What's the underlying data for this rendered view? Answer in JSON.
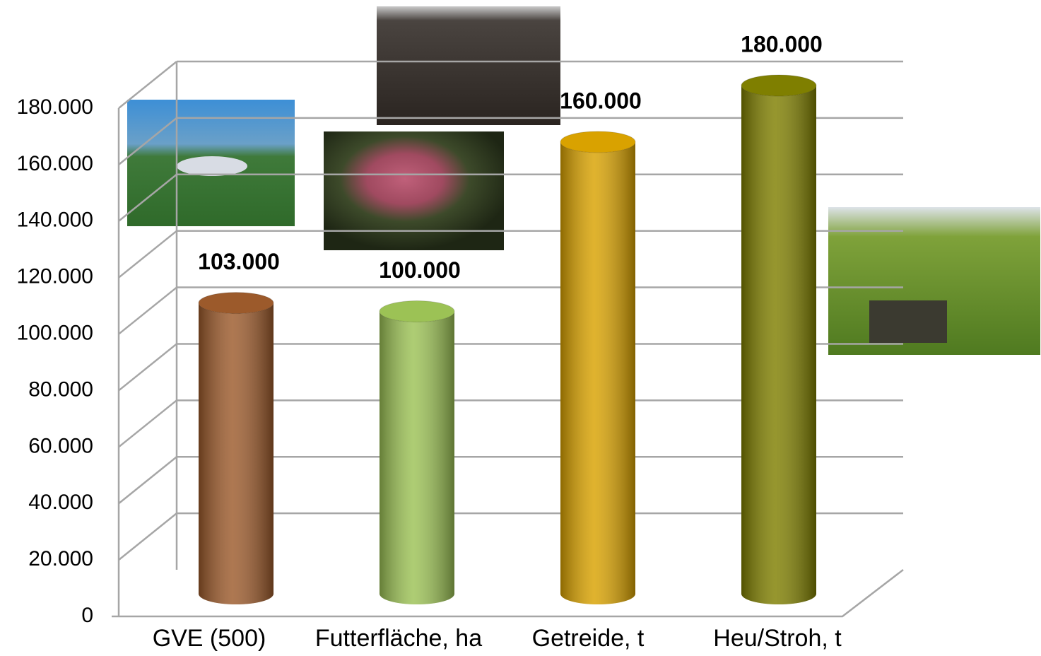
{
  "chart_data": {
    "type": "bar3d",
    "categories": [
      "GVE (500)",
      "Futterfläche, ha",
      "Getreide, t",
      "Heu/Stroh, t"
    ],
    "values": [
      103000,
      100000,
      160000,
      180000
    ],
    "value_labels": [
      "103.000",
      "100.000",
      "160.000",
      "180.000"
    ],
    "colors": [
      "#9c5a2b",
      "#9cc255",
      "#d9a200",
      "#7f7f00"
    ],
    "ylim": [
      0,
      180000
    ],
    "yticks": [
      0,
      {
        "value": 20000,
        "label": "20.000"
      },
      {
        "value": 40000,
        "label": "40.000"
      },
      {
        "value": 60000,
        "label": "60.000"
      },
      {
        "value": 80000,
        "label": "80.000"
      },
      {
        "value": 100000,
        "label": "100.000"
      },
      {
        "value": 120000,
        "label": "120.000"
      },
      {
        "value": 140000,
        "label": "140.000"
      },
      {
        "value": 160000,
        "label": "160.000"
      },
      {
        "value": 180000,
        "label": "180.000"
      }
    ],
    "grid": true
  }
}
